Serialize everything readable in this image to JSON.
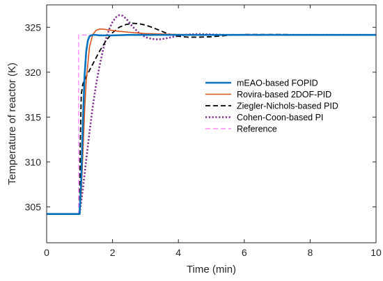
{
  "chart_data": {
    "type": "line",
    "title": "",
    "xlabel": "Time (min)",
    "ylabel": "Temperature of reactor (K)",
    "xlim": [
      0,
      10
    ],
    "ylim": [
      301,
      327.5
    ],
    "xticks": [
      0,
      2,
      4,
      6,
      8,
      10
    ],
    "yticks": [
      305,
      310,
      315,
      320,
      325
    ],
    "grid": false,
    "legend_position": "center-right",
    "series": [
      {
        "name": "mEAO-based FOPID",
        "color": "#0072BD",
        "style": "solid",
        "x": [
          0,
          1.0,
          1.05,
          1.1,
          1.15,
          1.2,
          1.25,
          1.3,
          1.35,
          1.4,
          1.5,
          1.6,
          1.8,
          2.0,
          2.5,
          3.0,
          4.0,
          6.0,
          8.0,
          10.0
        ],
        "y": [
          304.2,
          304.2,
          308.0,
          314.5,
          319.5,
          322.3,
          323.5,
          324.0,
          324.1,
          324.15,
          324.15,
          324.1,
          324.1,
          324.1,
          324.15,
          324.15,
          324.15,
          324.15,
          324.15,
          324.15
        ]
      },
      {
        "name": "Rovira-based 2DOF-PID",
        "color": "#D95319",
        "style": "solid",
        "x": [
          0,
          1.0,
          1.05,
          1.1,
          1.15,
          1.2,
          1.3,
          1.4,
          1.5,
          1.6,
          1.7,
          1.8,
          2.0,
          2.2,
          2.5,
          3.0,
          3.5,
          4.0,
          5.0,
          6.0,
          8.0,
          10.0
        ],
        "y": [
          304.2,
          304.2,
          306.5,
          311.0,
          315.5,
          319.0,
          322.8,
          324.2,
          324.65,
          324.8,
          324.8,
          324.75,
          324.65,
          324.55,
          324.45,
          324.3,
          324.25,
          324.2,
          324.15,
          324.15,
          324.15,
          324.15
        ]
      },
      {
        "name": "Ziegler-Nichols-based PID",
        "color": "#000000",
        "style": "dashed",
        "x": [
          0,
          1.0,
          1.02,
          1.05,
          1.1,
          1.2,
          1.3,
          1.4,
          1.5,
          1.6,
          1.8,
          2.0,
          2.2,
          2.4,
          2.6,
          2.8,
          3.0,
          3.2,
          3.4,
          3.6,
          3.8,
          4.0,
          4.3,
          4.6,
          5.0,
          5.5,
          6.0,
          7.0,
          8.0,
          10.0
        ],
        "y": [
          304.2,
          304.2,
          312.0,
          317.5,
          318.7,
          319.5,
          320.2,
          320.9,
          321.6,
          322.3,
          323.5,
          324.4,
          325.0,
          325.3,
          325.45,
          325.4,
          325.25,
          325.0,
          324.7,
          324.4,
          324.15,
          324.0,
          323.9,
          323.9,
          323.95,
          324.1,
          324.2,
          324.2,
          324.15,
          324.15
        ]
      },
      {
        "name": "Cohen-Coon-based PI",
        "color": "#7E2F8E",
        "style": "dotted",
        "x": [
          0,
          1.0,
          1.1,
          1.2,
          1.3,
          1.4,
          1.5,
          1.6,
          1.7,
          1.8,
          1.9,
          2.0,
          2.1,
          2.2,
          2.3,
          2.4,
          2.5,
          2.6,
          2.8,
          3.0,
          3.2,
          3.4,
          3.6,
          3.8,
          4.0,
          4.3,
          4.6,
          5.0,
          5.5,
          6.0,
          7.0,
          8.0,
          10.0
        ],
        "y": [
          304.2,
          304.2,
          307.0,
          310.2,
          313.3,
          316.2,
          318.6,
          320.6,
          322.3,
          323.7,
          324.8,
          325.6,
          326.1,
          326.35,
          326.3,
          326.0,
          325.6,
          325.1,
          324.4,
          323.9,
          323.7,
          323.65,
          323.75,
          323.9,
          324.05,
          324.2,
          324.25,
          324.2,
          324.15,
          324.15,
          324.15,
          324.15,
          324.15
        ]
      },
      {
        "name": "Reference",
        "color": "#FF77FF",
        "style": "dashed",
        "x": [
          0,
          0.97,
          0.97,
          10.0
        ],
        "y": [
          304.2,
          304.2,
          324.15,
          324.15
        ]
      }
    ]
  }
}
